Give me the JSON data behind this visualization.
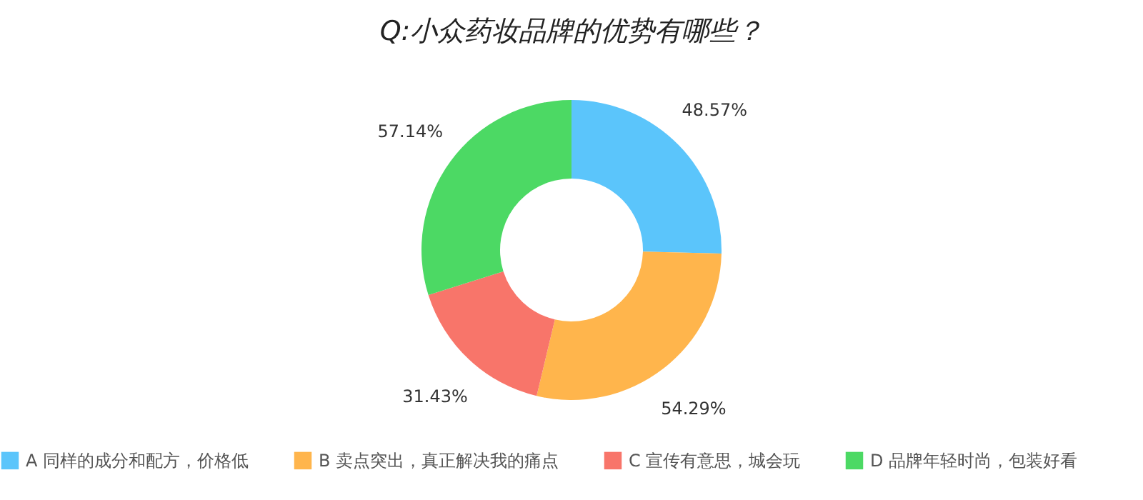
{
  "chart_data": {
    "type": "donut",
    "title": "Q:小众药妆品牌的优势有哪些？",
    "categories": [
      "A 同样的成分和配方，价格低",
      "B 卖点突出，真正解决我的痛点",
      "C 宣传有意思，城会玩",
      "D 品牌年轻时尚，包装好看"
    ],
    "values": [
      48.57,
      54.29,
      31.43,
      57.14
    ],
    "value_labels": [
      "48.57%",
      "54.29%",
      "31.43%",
      "57.14%"
    ],
    "colors": [
      "#5bc5fb",
      "#ffb54c",
      "#f8756a",
      "#4cd964"
    ],
    "legend": "bottom"
  }
}
